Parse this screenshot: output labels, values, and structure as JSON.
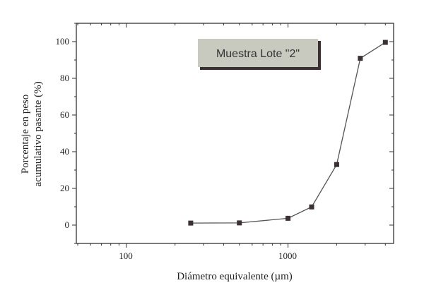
{
  "chart_data": {
    "type": "line",
    "title": "",
    "annotation": "Muestra Lote \"2\"",
    "xlabel": "Diámetro equivalente (µm)",
    "ylabel_line1": "Porcentaje en peso",
    "ylabel_line2": "acumulativo pasante (%)",
    "xscale": "log",
    "xlim": [
      49,
      4500
    ],
    "ylim": [
      -10,
      110
    ],
    "xticks": [
      100,
      1000
    ],
    "xtick_labels": [
      "100",
      "1000"
    ],
    "yticks": [
      0,
      20,
      40,
      60,
      80,
      100
    ],
    "ytick_labels": [
      "0",
      "20",
      "40",
      "60",
      "80",
      "100"
    ],
    "grid": false,
    "marker": "square",
    "series": [
      {
        "x": [
          250,
          500,
          1000,
          1400,
          2000,
          2800,
          4000
        ],
        "y": [
          1.1,
          1.2,
          3.7,
          9.9,
          33,
          90.9,
          99.6
        ]
      }
    ],
    "colors": {
      "line": "#555555",
      "marker": "#3a3035",
      "label_box": "#c8cac0",
      "label_shadow": "#3a2f33"
    }
  }
}
